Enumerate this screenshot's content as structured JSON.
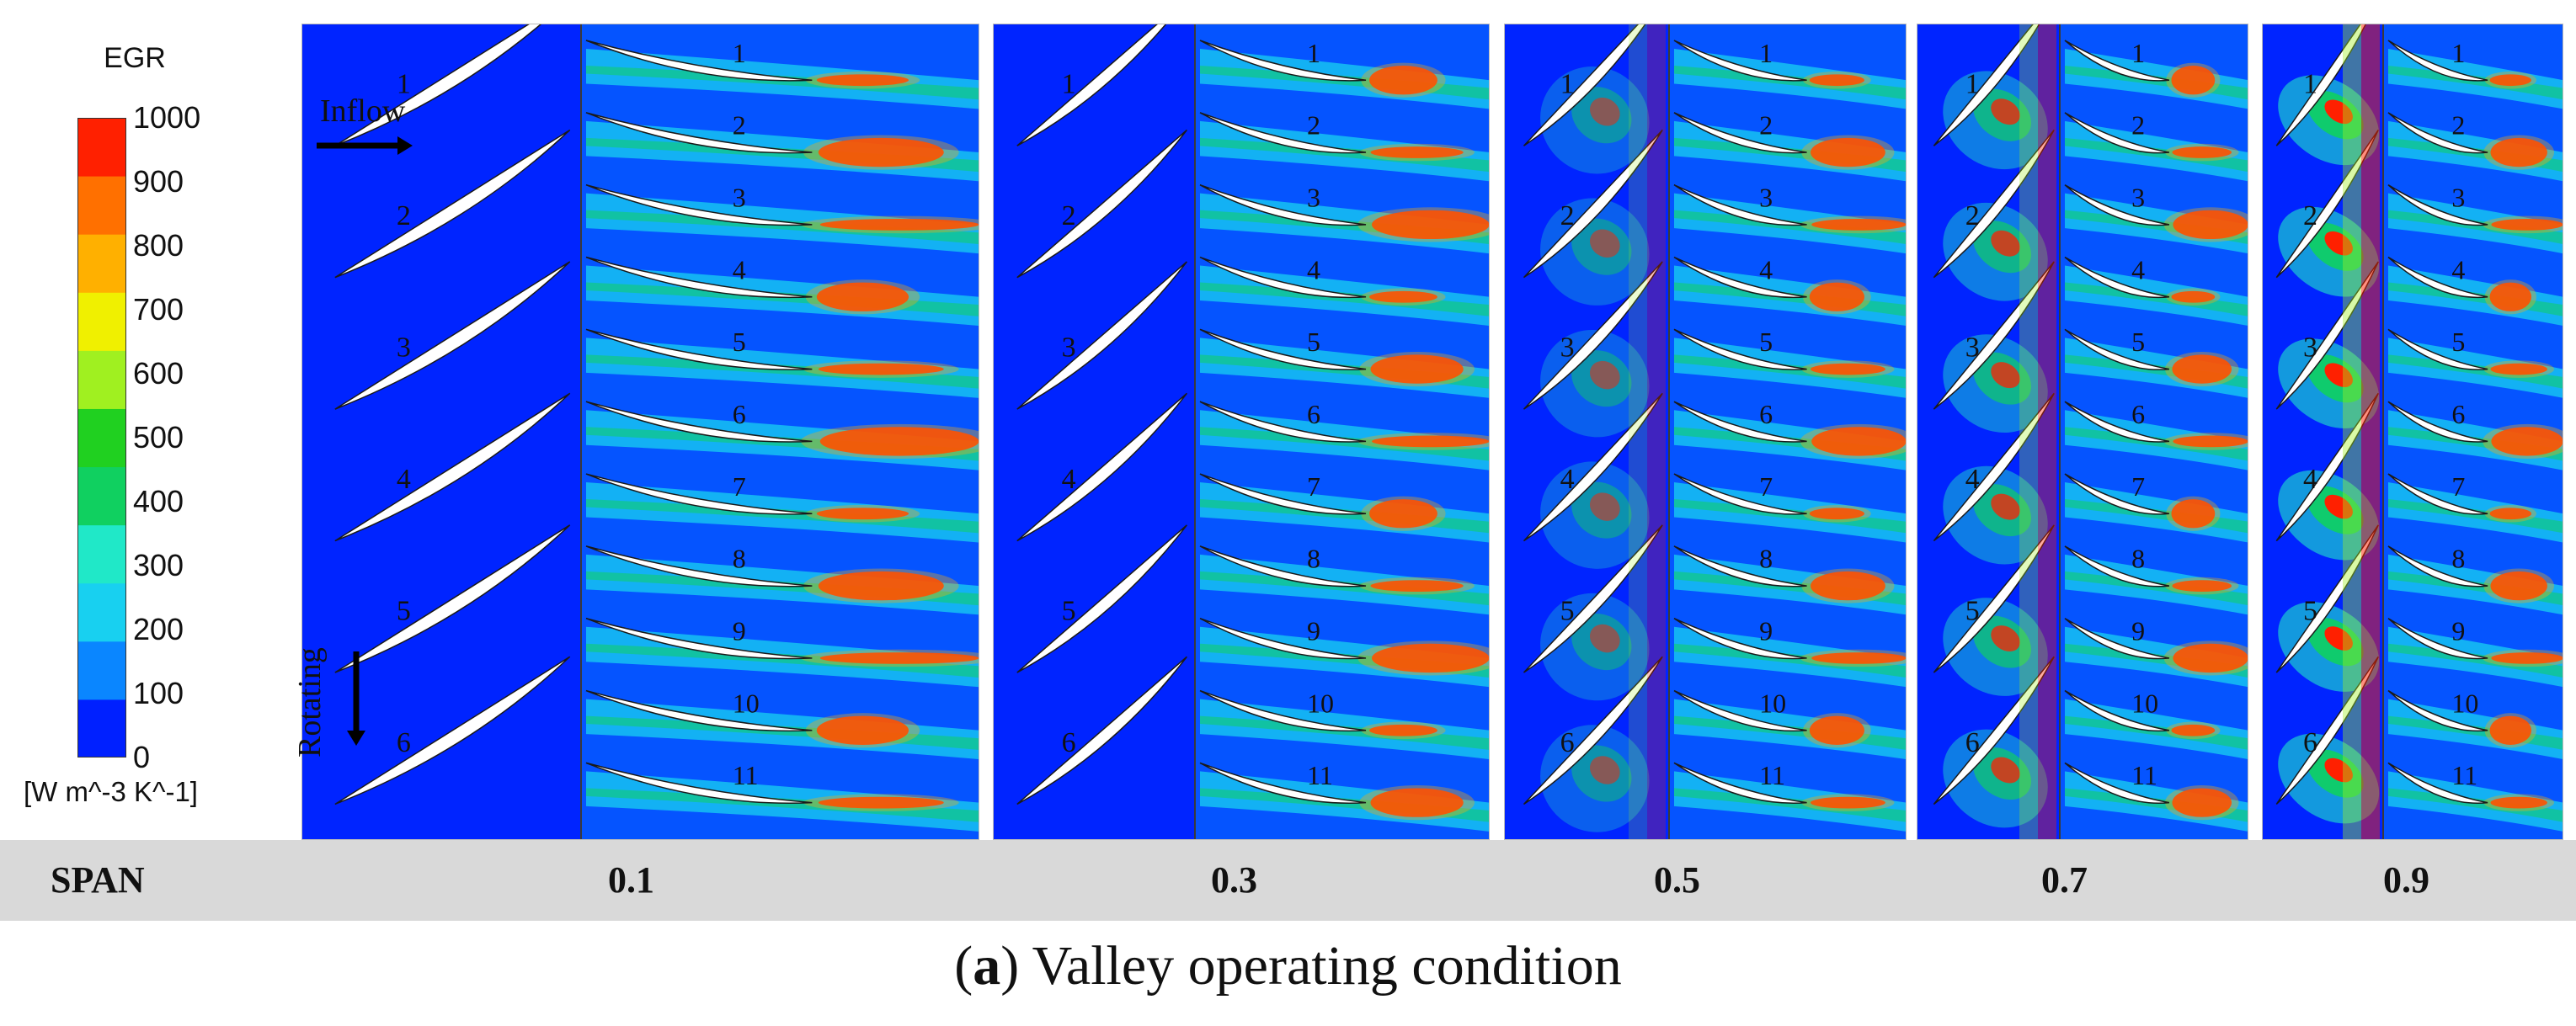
{
  "colorbar": {
    "title": "EGR",
    "unit": "[W m^-3 K^-1]",
    "ticks": [
      "1000",
      "900",
      "800",
      "700",
      "600",
      "500",
      "400",
      "300",
      "200",
      "100",
      "0"
    ],
    "colors": [
      "#0020ff",
      "#0a86ff",
      "#18d0f0",
      "#20e8c8",
      "#10d060",
      "#20d020",
      "#a0f020",
      "#f0f000",
      "#ffb000",
      "#ff7000",
      "#ff2000"
    ]
  },
  "annotations": {
    "inflow": "Inflow",
    "rotating": "Rotating"
  },
  "panels": [
    {
      "span": "0.1",
      "stator_labels": [
        "1",
        "2",
        "3",
        "4",
        "5",
        "6"
      ],
      "rotor_labels": [
        "1",
        "2",
        "3",
        "4",
        "5",
        "6",
        "7",
        "8",
        "9",
        "10",
        "11"
      ]
    },
    {
      "span": "0.3",
      "stator_labels": [
        "1",
        "2",
        "3",
        "4",
        "5",
        "6"
      ],
      "rotor_labels": [
        "1",
        "2",
        "3",
        "4",
        "5",
        "6",
        "7",
        "8",
        "9",
        "10",
        "11"
      ]
    },
    {
      "span": "0.5",
      "stator_labels": [
        "1",
        "2",
        "3",
        "4",
        "5",
        "6"
      ],
      "rotor_labels": [
        "1",
        "2",
        "3",
        "4",
        "5",
        "6",
        "7",
        "8",
        "9",
        "10",
        "11"
      ]
    },
    {
      "span": "0.7",
      "stator_labels": [
        "1",
        "2",
        "3",
        "4",
        "5",
        "6"
      ],
      "rotor_labels": [
        "1",
        "2",
        "3",
        "4",
        "5",
        "6",
        "7",
        "8",
        "9",
        "10",
        "11"
      ]
    },
    {
      "span": "0.9",
      "stator_labels": [
        "1",
        "2",
        "3",
        "4",
        "5",
        "6"
      ],
      "rotor_labels": [
        "1",
        "2",
        "3",
        "4",
        "5",
        "6",
        "7",
        "8",
        "9",
        "10",
        "11"
      ]
    }
  ],
  "span_header": "SPAN",
  "caption": {
    "letter": "a",
    "text": "Valley operating condition"
  }
}
